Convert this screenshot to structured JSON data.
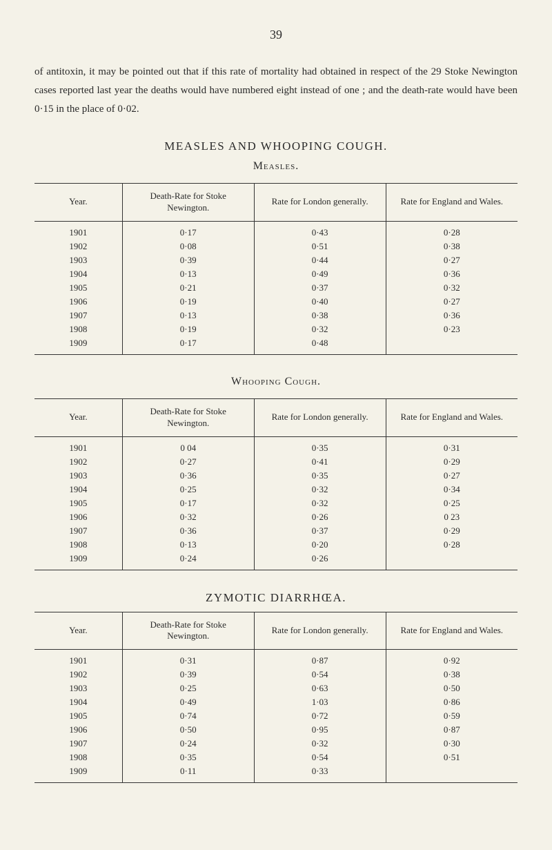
{
  "page_number": "39",
  "intro_paragraph": "of antitoxin, it may be pointed out that if this rate of mortality had obtained in respect of the 29 Stoke Newington cases reported last year the deaths would have numbered eight instead of one ; and the death-rate would have been 0·15 in the place of 0·02.",
  "section1_title": "MEASLES AND WHOOPING COUGH.",
  "measles": {
    "subtitle": "Measles.",
    "headers": {
      "year": "Year.",
      "col1": "Death-Rate for Stoke Newington.",
      "col2": "Rate for London generally.",
      "col3": "Rate for England and Wales."
    },
    "rows": [
      {
        "year": "1901",
        "c1": "0·17",
        "c2": "0·43",
        "c3": "0·28"
      },
      {
        "year": "1902",
        "c1": "0·08",
        "c2": "0·51",
        "c3": "0·38"
      },
      {
        "year": "1903",
        "c1": "0·39",
        "c2": "0·44",
        "c3": "0·27"
      },
      {
        "year": "1904",
        "c1": "0·13",
        "c2": "0·49",
        "c3": "0·36"
      },
      {
        "year": "1905",
        "c1": "0·21",
        "c2": "0·37",
        "c3": "0·32"
      },
      {
        "year": "1906",
        "c1": "0·19",
        "c2": "0·40",
        "c3": "0·27"
      },
      {
        "year": "1907",
        "c1": "0·13",
        "c2": "0·38",
        "c3": "0·36"
      },
      {
        "year": "1908",
        "c1": "0·19",
        "c2": "0·32",
        "c3": "0·23"
      },
      {
        "year": "1909",
        "c1": "0·17",
        "c2": "0·48",
        "c3": ""
      }
    ]
  },
  "whooping": {
    "subtitle": "Whooping Cough.",
    "headers": {
      "year": "Year.",
      "col1": "Death-Rate for Stoke Newington.",
      "col2": "Rate for London generally.",
      "col3": "Rate for England and Wales."
    },
    "rows": [
      {
        "year": "1901",
        "c1": "0 04",
        "c2": "0·35",
        "c3": "0·31"
      },
      {
        "year": "1902",
        "c1": "0·27",
        "c2": "0·41",
        "c3": "0·29"
      },
      {
        "year": "1903",
        "c1": "0·36",
        "c2": "0·35",
        "c3": "0·27"
      },
      {
        "year": "1904",
        "c1": "0·25",
        "c2": "0·32",
        "c3": "0·34"
      },
      {
        "year": "1905",
        "c1": "0·17",
        "c2": "0·32",
        "c3": "0·25"
      },
      {
        "year": "1906",
        "c1": "0·32",
        "c2": "0·26",
        "c3": "0 23"
      },
      {
        "year": "1907",
        "c1": "0·36",
        "c2": "0·37",
        "c3": "0·29"
      },
      {
        "year": "1908",
        "c1": "0·13",
        "c2": "0·20",
        "c3": "0·28"
      },
      {
        "year": "1909",
        "c1": "0·24",
        "c2": "0·26",
        "c3": ""
      }
    ]
  },
  "section2_title": "ZYMOTIC DIARRHŒA.",
  "diarrhoea": {
    "headers": {
      "year": "Year.",
      "col1": "Death-Rate for Stoke Newington.",
      "col2": "Rate for London generally.",
      "col3": "Rate for England and Wales."
    },
    "rows": [
      {
        "year": "1901",
        "c1": "0·31",
        "c2": "0·87",
        "c3": "0·92"
      },
      {
        "year": "1902",
        "c1": "0·39",
        "c2": "0·54",
        "c3": "0·38"
      },
      {
        "year": "1903",
        "c1": "0·25",
        "c2": "0·63",
        "c3": "0·50"
      },
      {
        "year": "1904",
        "c1": "0·49",
        "c2": "1·03",
        "c3": "0·86"
      },
      {
        "year": "1905",
        "c1": "0·74",
        "c2": "0·72",
        "c3": "0·59"
      },
      {
        "year": "1906",
        "c1": "0·50",
        "c2": "0·95",
        "c3": "0·87"
      },
      {
        "year": "1907",
        "c1": "0·24",
        "c2": "0·32",
        "c3": "0·30"
      },
      {
        "year": "1908",
        "c1": "0·35",
        "c2": "0·54",
        "c3": "0·51"
      },
      {
        "year": "1909",
        "c1": "0·11",
        "c2": "0·33",
        "c3": ""
      }
    ]
  }
}
